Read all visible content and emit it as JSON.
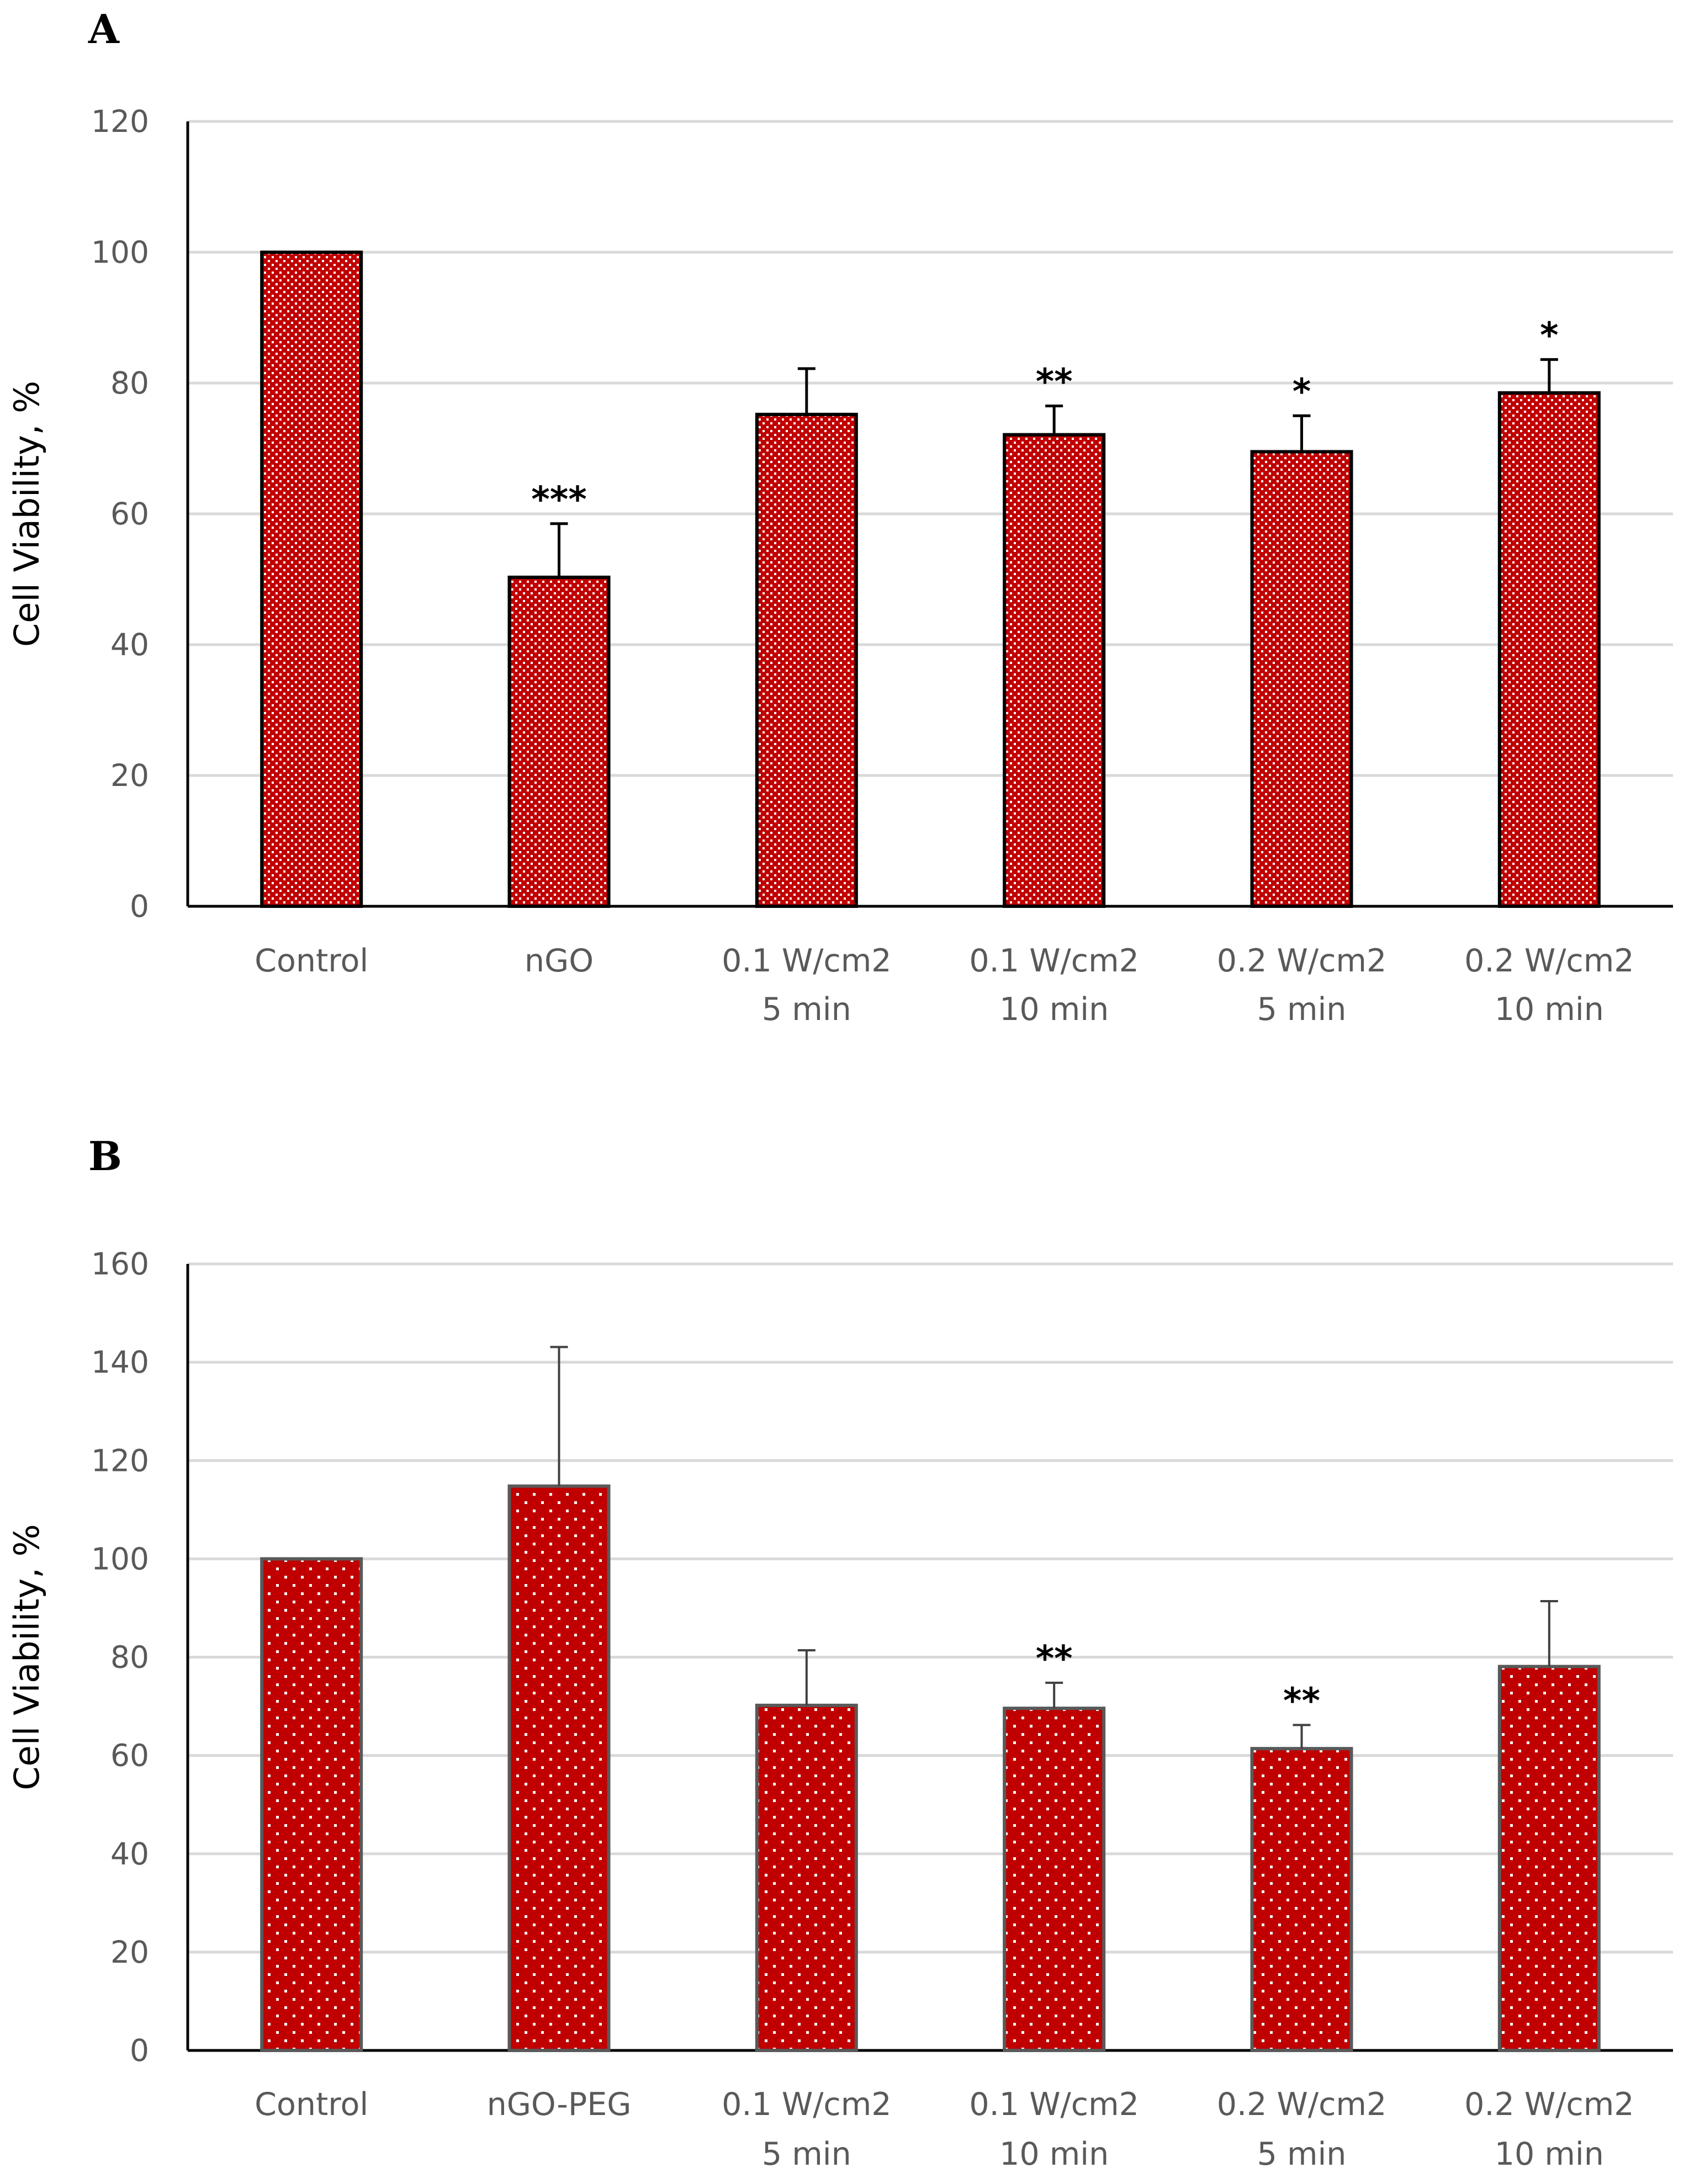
{
  "chart_data": [
    {
      "id": "A",
      "panel_label": "A",
      "type": "bar",
      "ylabel": "Cell Viability, %",
      "xlabel": "",
      "ylim": [
        0,
        120
      ],
      "yticks": [
        0,
        20,
        40,
        60,
        80,
        100,
        120
      ],
      "grid": true,
      "bar_style": "dense-dots",
      "categories": [
        [
          "Control"
        ],
        [
          "nGO"
        ],
        [
          "0.1 W/cm2",
          "5 min"
        ],
        [
          "0.1 W/cm2",
          "10 min"
        ],
        [
          "0.2 W/cm2",
          "5 min"
        ],
        [
          "0.2 W/cm2",
          "10 min"
        ]
      ],
      "values": [
        100,
        50.3,
        75.2,
        72.1,
        69.5,
        78.5
      ],
      "errors": [
        0,
        8.2,
        7.0,
        4.4,
        5.5,
        5.1
      ],
      "significance": [
        "",
        "***",
        "",
        "**",
        "*",
        "*"
      ]
    },
    {
      "id": "B",
      "panel_label": "B",
      "type": "bar",
      "ylabel": "Cell Viability, %",
      "xlabel": "",
      "ylim": [
        0,
        160
      ],
      "yticks": [
        0,
        20,
        40,
        60,
        80,
        100,
        120,
        140,
        160
      ],
      "grid": true,
      "bar_style": "sparse-dots",
      "categories": [
        [
          "Control"
        ],
        [
          "nGO-PEG"
        ],
        [
          "0.1 W/cm2",
          "5 min"
        ],
        [
          "0.1 W/cm2",
          "10 min"
        ],
        [
          "0.2 W/cm2",
          "5 min"
        ],
        [
          "0.2 W/cm2",
          "10 min"
        ]
      ],
      "values": [
        100,
        114.8,
        70.2,
        69.6,
        61.4,
        78.1
      ],
      "errors": [
        0,
        28.3,
        11.2,
        5.2,
        4.8,
        13.3
      ],
      "significance": [
        "",
        "",
        "",
        "**",
        "**",
        ""
      ]
    }
  ],
  "colors": {
    "bar_fill": "#c00000",
    "dot_color": "#ffffff",
    "bar_border_a": "#000000",
    "bar_border_b": "#595959",
    "error_bar_a": "#000000",
    "error_bar_b": "#404040"
  }
}
